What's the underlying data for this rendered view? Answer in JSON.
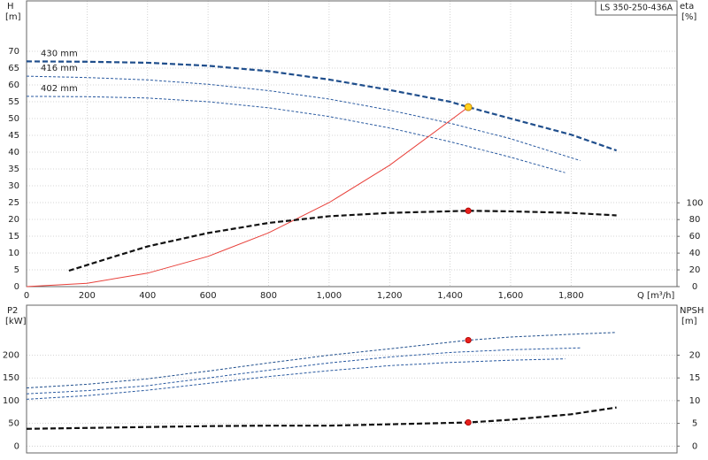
{
  "chart_data": [
    {
      "type": "line",
      "title": "LS 350-250-436A",
      "ylabel": "H",
      "yunit": "[m]",
      "y2label": "eta",
      "y2unit": "[%]",
      "xlabel": "Q [m³/h]",
      "xlim": [
        0,
        2150
      ],
      "xticks": [
        0,
        200,
        400,
        600,
        800,
        {
          "value": 1000,
          "label": "1,000"
        },
        {
          "value": 1200,
          "label": "1,200"
        },
        {
          "value": 1400,
          "label": "1,400"
        },
        {
          "value": 1600,
          "label": "1,600"
        },
        {
          "value": 1800,
          "label": "1,800"
        }
      ],
      "ylim": [
        0,
        85
      ],
      "yticks": [
        0,
        5,
        10,
        15,
        20,
        25,
        30,
        35,
        40,
        45,
        50,
        55,
        60,
        65,
        70
      ],
      "y2lim": [
        0,
        341
      ],
      "y2ticks": [
        0,
        20,
        40,
        60,
        80,
        100
      ],
      "grid": true,
      "series": [
        {
          "name": "430 mm",
          "color": "#1f4e8c",
          "style": "bold-dashed",
          "x": [
            0,
            200,
            400,
            600,
            800,
            1000,
            1200,
            1400,
            1460,
            1600,
            1800,
            1950
          ],
          "values": [
            67.0,
            66.9,
            66.6,
            65.7,
            64.1,
            61.6,
            58.5,
            55.0,
            53.4,
            50.0,
            45.2,
            40.5
          ]
        },
        {
          "name": "416 mm",
          "color": "#2a5aa0",
          "style": "dashed",
          "x": [
            0,
            200,
            400,
            600,
            800,
            1000,
            1200,
            1400,
            1600,
            1830
          ],
          "values": [
            62.6,
            62.2,
            61.5,
            60.2,
            58.3,
            55.8,
            52.5,
            48.6,
            44.0,
            37.5
          ]
        },
        {
          "name": "402 mm",
          "color": "#2a5aa0",
          "style": "dashed",
          "x": [
            0,
            200,
            400,
            600,
            800,
            1000,
            1200,
            1400,
            1600,
            1780
          ],
          "values": [
            56.6,
            56.5,
            56.1,
            55.0,
            53.2,
            50.6,
            47.2,
            43.1,
            38.5,
            33.9
          ]
        },
        {
          "color": "#e8403a",
          "style": "solid",
          "x": [
            0,
            200,
            400,
            600,
            800,
            1000,
            1200,
            1460
          ],
          "values": [
            0,
            1.0,
            4.0,
            9.0,
            16.0,
            25.0,
            36.1,
            53.4
          ]
        },
        {
          "color": "#111111",
          "style": "bold-dashed",
          "axis": "y2",
          "x": [
            140,
            300,
            400,
            600,
            800,
            1000,
            1200,
            1460,
            1600,
            1800,
            1950
          ],
          "values": [
            19,
            37,
            48,
            64,
            76,
            84,
            88,
            90.5,
            89.8,
            88,
            85
          ]
        }
      ],
      "markers": [
        {
          "x": 1460,
          "y": 53.4,
          "color": "#ffd21f"
        },
        {
          "x": 1460,
          "y": 90.5,
          "color": "#e8201c",
          "axis": "y2"
        }
      ]
    },
    {
      "type": "line",
      "ylabel": "P2",
      "yunit": "[kW]",
      "y2label": "NPSH",
      "y2unit": "[m]",
      "xlim": [
        0,
        2150
      ],
      "ylim": [
        -15,
        310
      ],
      "yticks": [
        0,
        50,
        100,
        150,
        200
      ],
      "y2lim": [
        -1.5,
        31
      ],
      "y2ticks": [
        0,
        5,
        10,
        15,
        20
      ],
      "grid": true,
      "series": [
        {
          "color": "#1f4e8c",
          "style": "dashed",
          "x": [
            0,
            200,
            400,
            600,
            800,
            1000,
            1200,
            1460,
            1600,
            1800,
            1950
          ],
          "values": [
            128,
            136,
            148,
            165,
            183,
            200,
            214,
            233,
            240,
            246,
            250
          ]
        },
        {
          "color": "#2a5aa0",
          "style": "dashed",
          "x": [
            0,
            200,
            400,
            600,
            800,
            1000,
            1200,
            1400,
            1600,
            1830
          ],
          "values": [
            115,
            122,
            133,
            150,
            167,
            183,
            196,
            206,
            212,
            216
          ]
        },
        {
          "color": "#2a5aa0",
          "style": "dashed",
          "x": [
            0,
            200,
            400,
            600,
            800,
            1000,
            1200,
            1400,
            1600,
            1780
          ],
          "values": [
            103,
            111,
            123,
            138,
            153,
            166,
            177,
            184,
            189,
            192
          ]
        },
        {
          "color": "#111111",
          "style": "bold-dashed",
          "axis": "y2",
          "x": [
            0,
            200,
            400,
            600,
            800,
            1000,
            1200,
            1460,
            1600,
            1800,
            1950
          ],
          "values": [
            3.8,
            4.0,
            4.2,
            4.4,
            4.5,
            4.5,
            4.8,
            5.2,
            5.8,
            7.0,
            8.5
          ]
        }
      ],
      "markers": [
        {
          "x": 1460,
          "y": 233,
          "color": "#e8201c"
        },
        {
          "x": 1460,
          "y": 5.2,
          "color": "#e8201c",
          "axis": "y2"
        }
      ]
    }
  ]
}
